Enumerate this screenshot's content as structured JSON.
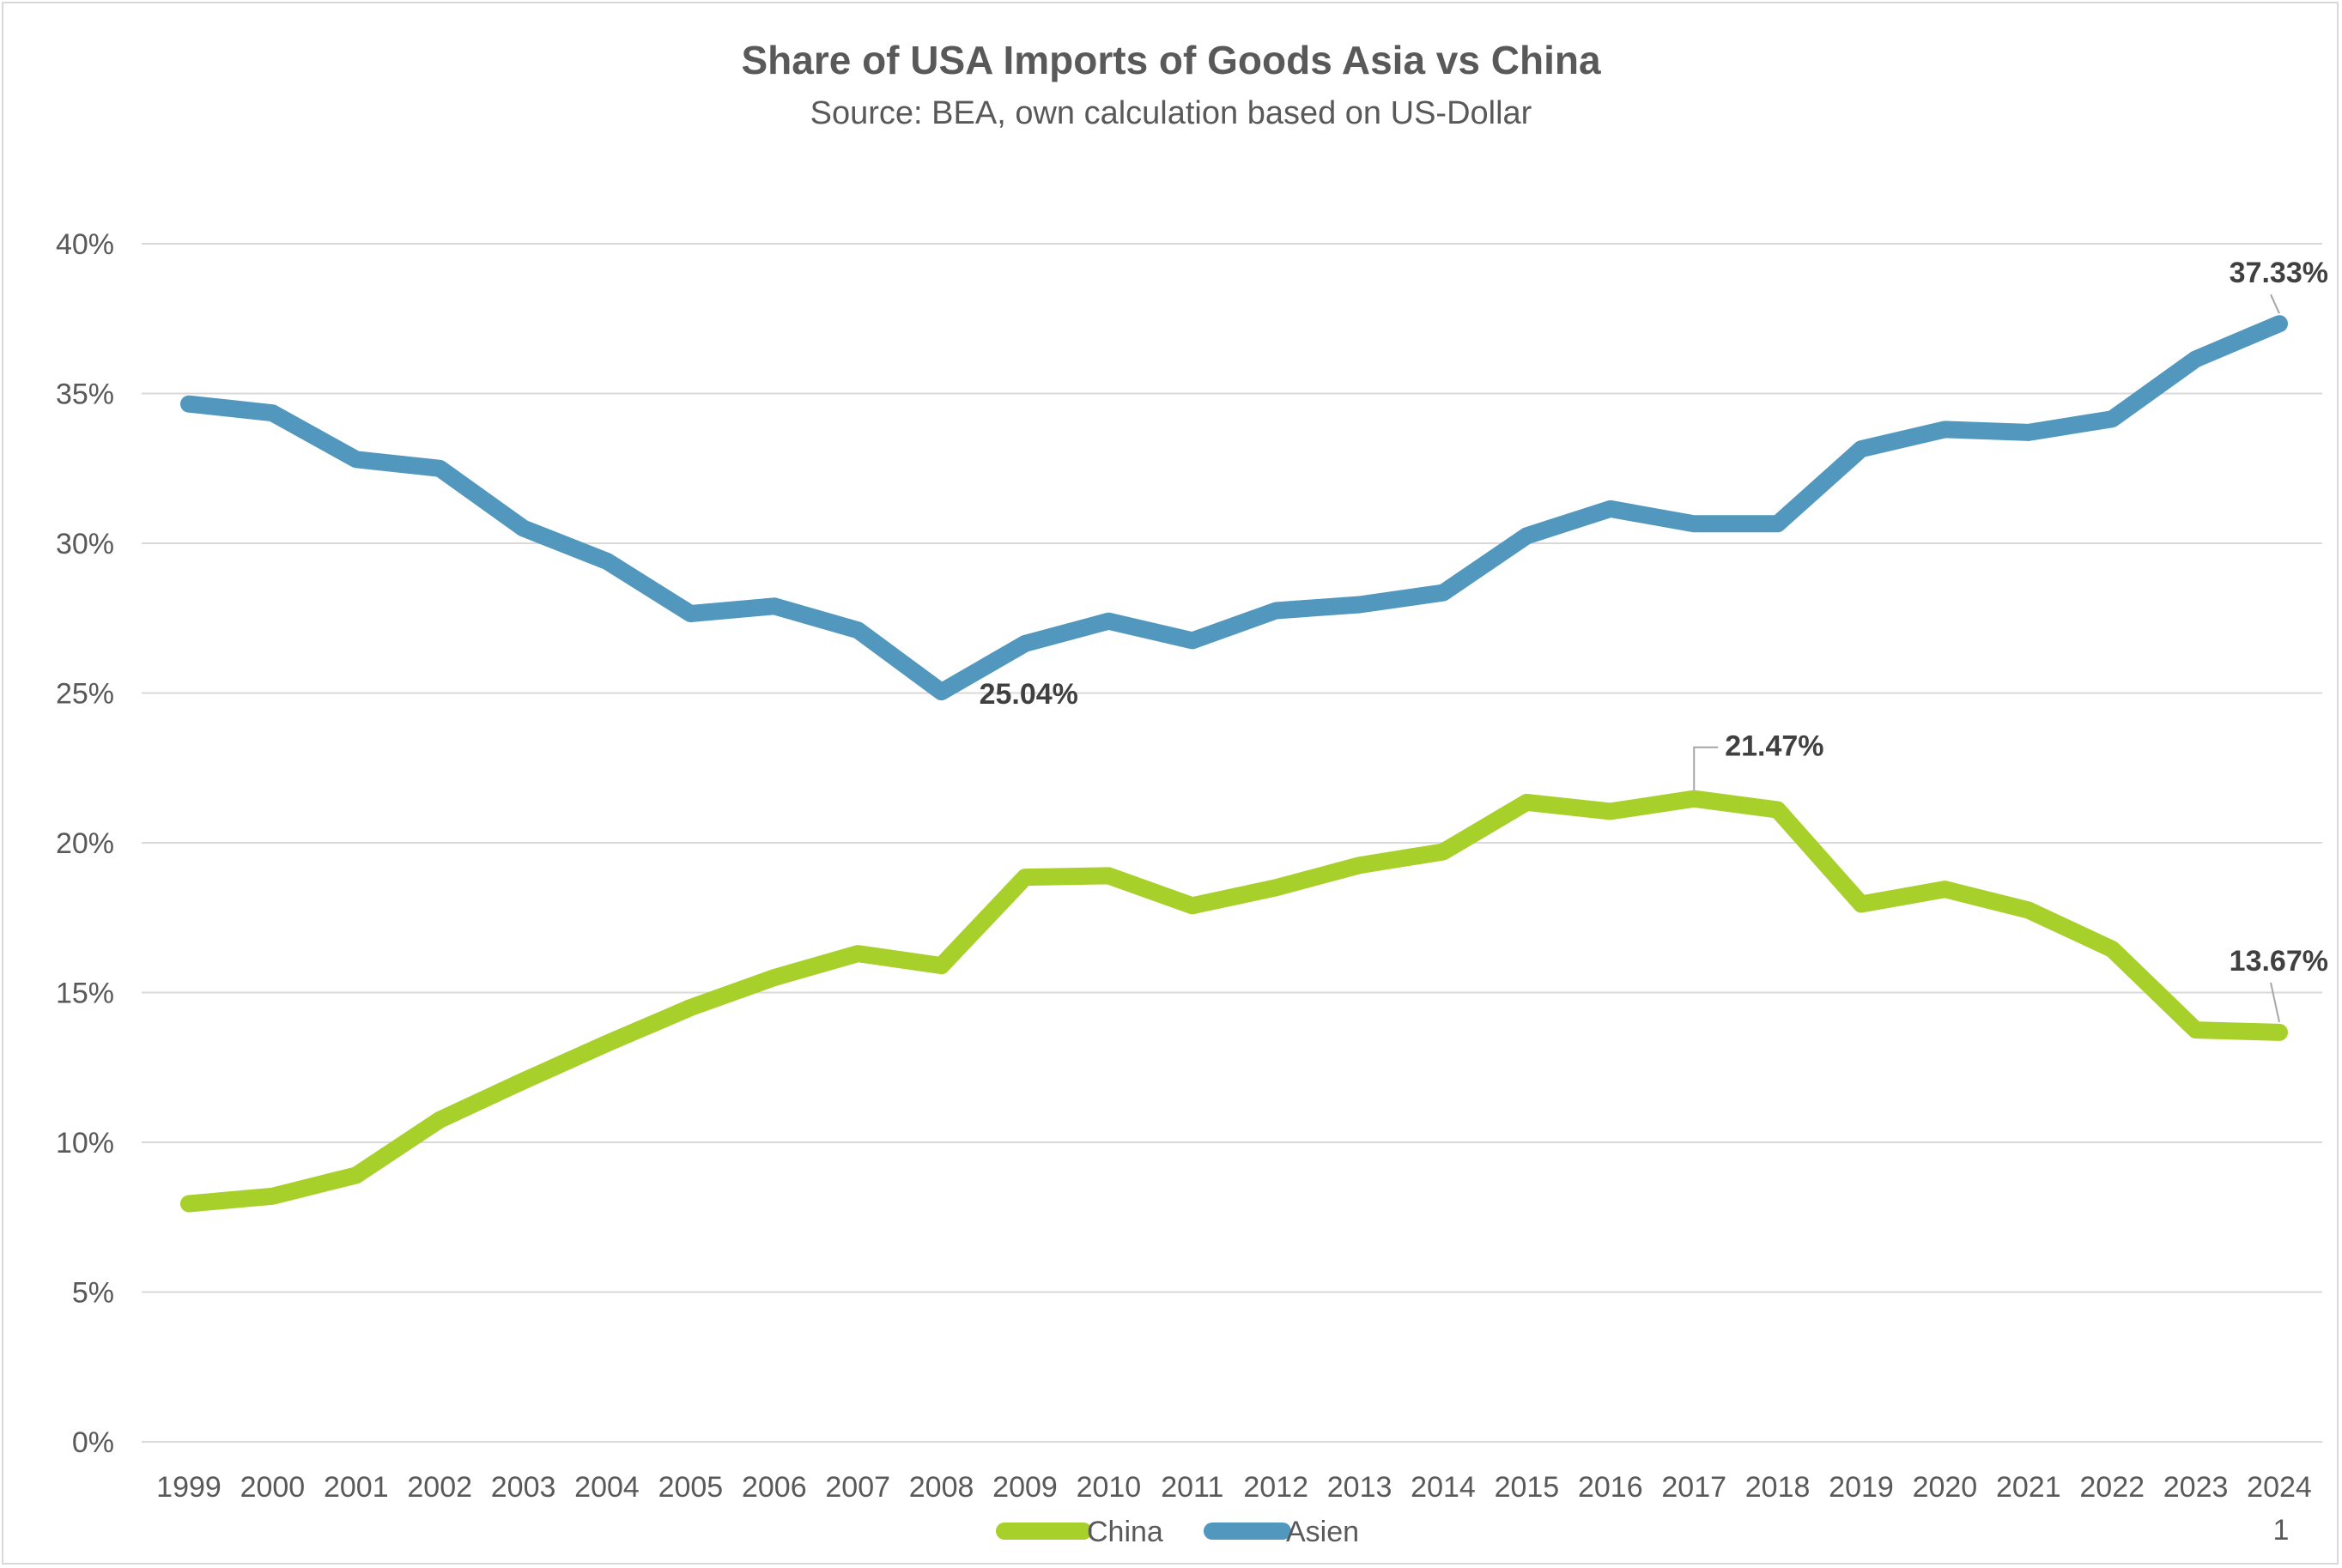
{
  "chart_data": {
    "type": "line",
    "title": "Share of USA Imports of Goods Asia vs China",
    "subtitle": "Source: BEA, own calculation based on US-Dollar",
    "xlabel": "",
    "ylabel": "",
    "ylim": [
      0,
      0.4
    ],
    "yticks": [
      0,
      0.05,
      0.1,
      0.15,
      0.2,
      0.25,
      0.3,
      0.35,
      0.4
    ],
    "ytick_labels": [
      "0%",
      "5%",
      "10%",
      "15%",
      "20%",
      "25%",
      "30%",
      "35%",
      "40%"
    ],
    "grid": true,
    "legend_position": "bottom",
    "categories": [
      "1999",
      "2000",
      "2001",
      "2002",
      "2003",
      "2004",
      "2005",
      "2006",
      "2007",
      "2008",
      "2009",
      "2010",
      "2011",
      "2012",
      "2013",
      "2014",
      "2015",
      "2016",
      "2017",
      "2018",
      "2019",
      "2020",
      "2021",
      "2022",
      "2023",
      "2024"
    ],
    "series": [
      {
        "name": "China",
        "color": "#a8d02a",
        "values": [
          0.0795,
          0.082,
          0.089,
          0.1075,
          0.1205,
          0.133,
          0.145,
          0.155,
          0.163,
          0.159,
          0.1885,
          0.189,
          0.179,
          0.185,
          0.1925,
          0.197,
          0.2135,
          0.2105,
          0.2147,
          0.211,
          0.1795,
          0.1845,
          0.1775,
          0.1645,
          0.1375,
          0.1367
        ]
      },
      {
        "name": "Asien",
        "color": "#5197be",
        "values": [
          0.3465,
          0.3435,
          0.328,
          0.325,
          0.305,
          0.294,
          0.2765,
          0.279,
          0.271,
          0.2504,
          0.2665,
          0.274,
          0.2675,
          0.2775,
          0.2795,
          0.2835,
          0.3025,
          0.3115,
          0.3065,
          0.3065,
          0.3315,
          0.338,
          0.337,
          0.3415,
          0.3615,
          0.3733
        ]
      }
    ],
    "data_labels": [
      {
        "series": "Asien",
        "category": "2008",
        "text": "25.04%"
      },
      {
        "series": "Asien",
        "category": "2024",
        "text": "37.33%"
      },
      {
        "series": "China",
        "category": "2017",
        "text": "21.47%"
      },
      {
        "series": "China",
        "category": "2024",
        "text": "13.67%"
      }
    ],
    "corner_note": "1"
  }
}
